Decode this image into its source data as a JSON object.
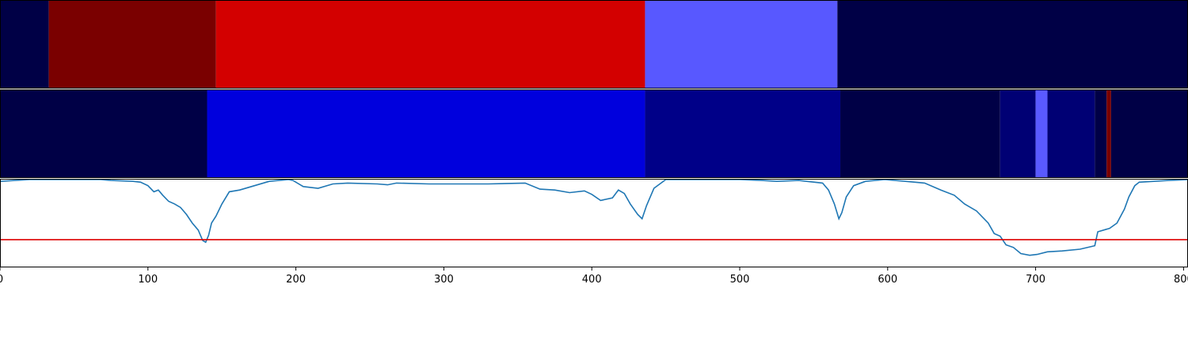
{
  "chart_data": [
    {
      "type": "heatmap",
      "panel": "top-band",
      "xlim": [
        0,
        803
      ],
      "segments": [
        {
          "start": 0,
          "end": 33,
          "color": "#000046"
        },
        {
          "start": 33,
          "end": 146,
          "color": "#7a0000"
        },
        {
          "start": 146,
          "end": 436,
          "color": "#d30000"
        },
        {
          "start": 436,
          "end": 566,
          "color": "#5858ff"
        },
        {
          "start": 566,
          "end": 803,
          "color": "#000046"
        }
      ]
    },
    {
      "type": "heatmap",
      "panel": "middle-band",
      "xlim": [
        0,
        803
      ],
      "segments": [
        {
          "start": 0,
          "end": 140,
          "color": "#000046"
        },
        {
          "start": 140,
          "end": 436,
          "color": "#0000dd"
        },
        {
          "start": 436,
          "end": 568,
          "color": "#000088"
        },
        {
          "start": 568,
          "end": 676,
          "color": "#000046"
        },
        {
          "start": 676,
          "end": 700,
          "color": "#000074"
        },
        {
          "start": 700,
          "end": 708,
          "color": "#5a5aff"
        },
        {
          "start": 708,
          "end": 740,
          "color": "#000074"
        },
        {
          "start": 740,
          "end": 748,
          "color": "#000046"
        },
        {
          "start": 748,
          "end": 751,
          "color": "#7a0000"
        },
        {
          "start": 751,
          "end": 803,
          "color": "#000046"
        }
      ]
    },
    {
      "type": "line",
      "panel": "bottom-signal",
      "xlim": [
        0,
        803
      ],
      "ylim": [
        0,
        1
      ],
      "series": [
        {
          "color": "#1f77b4",
          "points": [
            [
              0,
              0.98
            ],
            [
              10,
              0.99
            ],
            [
              20,
              1.0
            ],
            [
              60,
              1.0
            ],
            [
              68,
              1.0
            ],
            [
              75,
              0.99
            ],
            [
              90,
              0.98
            ],
            [
              95,
              0.97
            ],
            [
              100,
              0.93
            ],
            [
              104,
              0.86
            ],
            [
              107,
              0.88
            ],
            [
              110,
              0.82
            ],
            [
              114,
              0.75
            ],
            [
              118,
              0.72
            ],
            [
              122,
              0.68
            ],
            [
              126,
              0.6
            ],
            [
              130,
              0.5
            ],
            [
              134,
              0.42
            ],
            [
              137,
              0.3
            ],
            [
              139,
              0.28
            ],
            [
              141,
              0.36
            ],
            [
              143,
              0.5
            ],
            [
              146,
              0.58
            ],
            [
              150,
              0.72
            ],
            [
              155,
              0.86
            ],
            [
              162,
              0.88
            ],
            [
              172,
              0.93
            ],
            [
              182,
              0.98
            ],
            [
              195,
              1.0
            ],
            [
              198,
              0.99
            ],
            [
              205,
              0.92
            ],
            [
              215,
              0.9
            ],
            [
              225,
              0.95
            ],
            [
              235,
              0.96
            ],
            [
              255,
              0.95
            ],
            [
              262,
              0.94
            ],
            [
              268,
              0.96
            ],
            [
              290,
              0.95
            ],
            [
              305,
              0.95
            ],
            [
              330,
              0.95
            ],
            [
              355,
              0.96
            ],
            [
              365,
              0.89
            ],
            [
              375,
              0.88
            ],
            [
              385,
              0.85
            ],
            [
              395,
              0.87
            ],
            [
              400,
              0.83
            ],
            [
              406,
              0.76
            ],
            [
              414,
              0.79
            ],
            [
              418,
              0.88
            ],
            [
              422,
              0.84
            ],
            [
              426,
              0.72
            ],
            [
              431,
              0.6
            ],
            [
              434,
              0.55
            ],
            [
              437,
              0.7
            ],
            [
              442,
              0.9
            ],
            [
              450,
              1.0
            ],
            [
              500,
              1.0
            ],
            [
              515,
              0.99
            ],
            [
              525,
              0.98
            ],
            [
              540,
              0.99
            ],
            [
              556,
              0.96
            ],
            [
              560,
              0.88
            ],
            [
              564,
              0.72
            ],
            [
              567,
              0.55
            ],
            [
              569,
              0.62
            ],
            [
              572,
              0.8
            ],
            [
              577,
              0.93
            ],
            [
              585,
              0.98
            ],
            [
              598,
              1.0
            ],
            [
              612,
              0.98
            ],
            [
              625,
              0.96
            ],
            [
              636,
              0.88
            ],
            [
              645,
              0.82
            ],
            [
              652,
              0.72
            ],
            [
              660,
              0.64
            ],
            [
              668,
              0.5
            ],
            [
              672,
              0.38
            ],
            [
              676,
              0.35
            ],
            [
              680,
              0.25
            ],
            [
              685,
              0.22
            ],
            [
              690,
              0.15
            ],
            [
              696,
              0.13
            ],
            [
              701,
              0.14
            ],
            [
              708,
              0.17
            ],
            [
              718,
              0.18
            ],
            [
              730,
              0.2
            ],
            [
              740,
              0.24
            ],
            [
              742,
              0.4
            ],
            [
              750,
              0.44
            ],
            [
              755,
              0.5
            ],
            [
              760,
              0.66
            ],
            [
              763,
              0.8
            ],
            [
              767,
              0.93
            ],
            [
              770,
              0.97
            ],
            [
              780,
              0.98
            ],
            [
              790,
              0.99
            ],
            [
              803,
              1.0
            ]
          ]
        }
      ],
      "threshold": {
        "value": 0.31,
        "color": "#dd0000"
      },
      "xticks": [
        "0",
        "100",
        "200",
        "300",
        "400",
        "500",
        "600",
        "700",
        "800"
      ]
    }
  ]
}
